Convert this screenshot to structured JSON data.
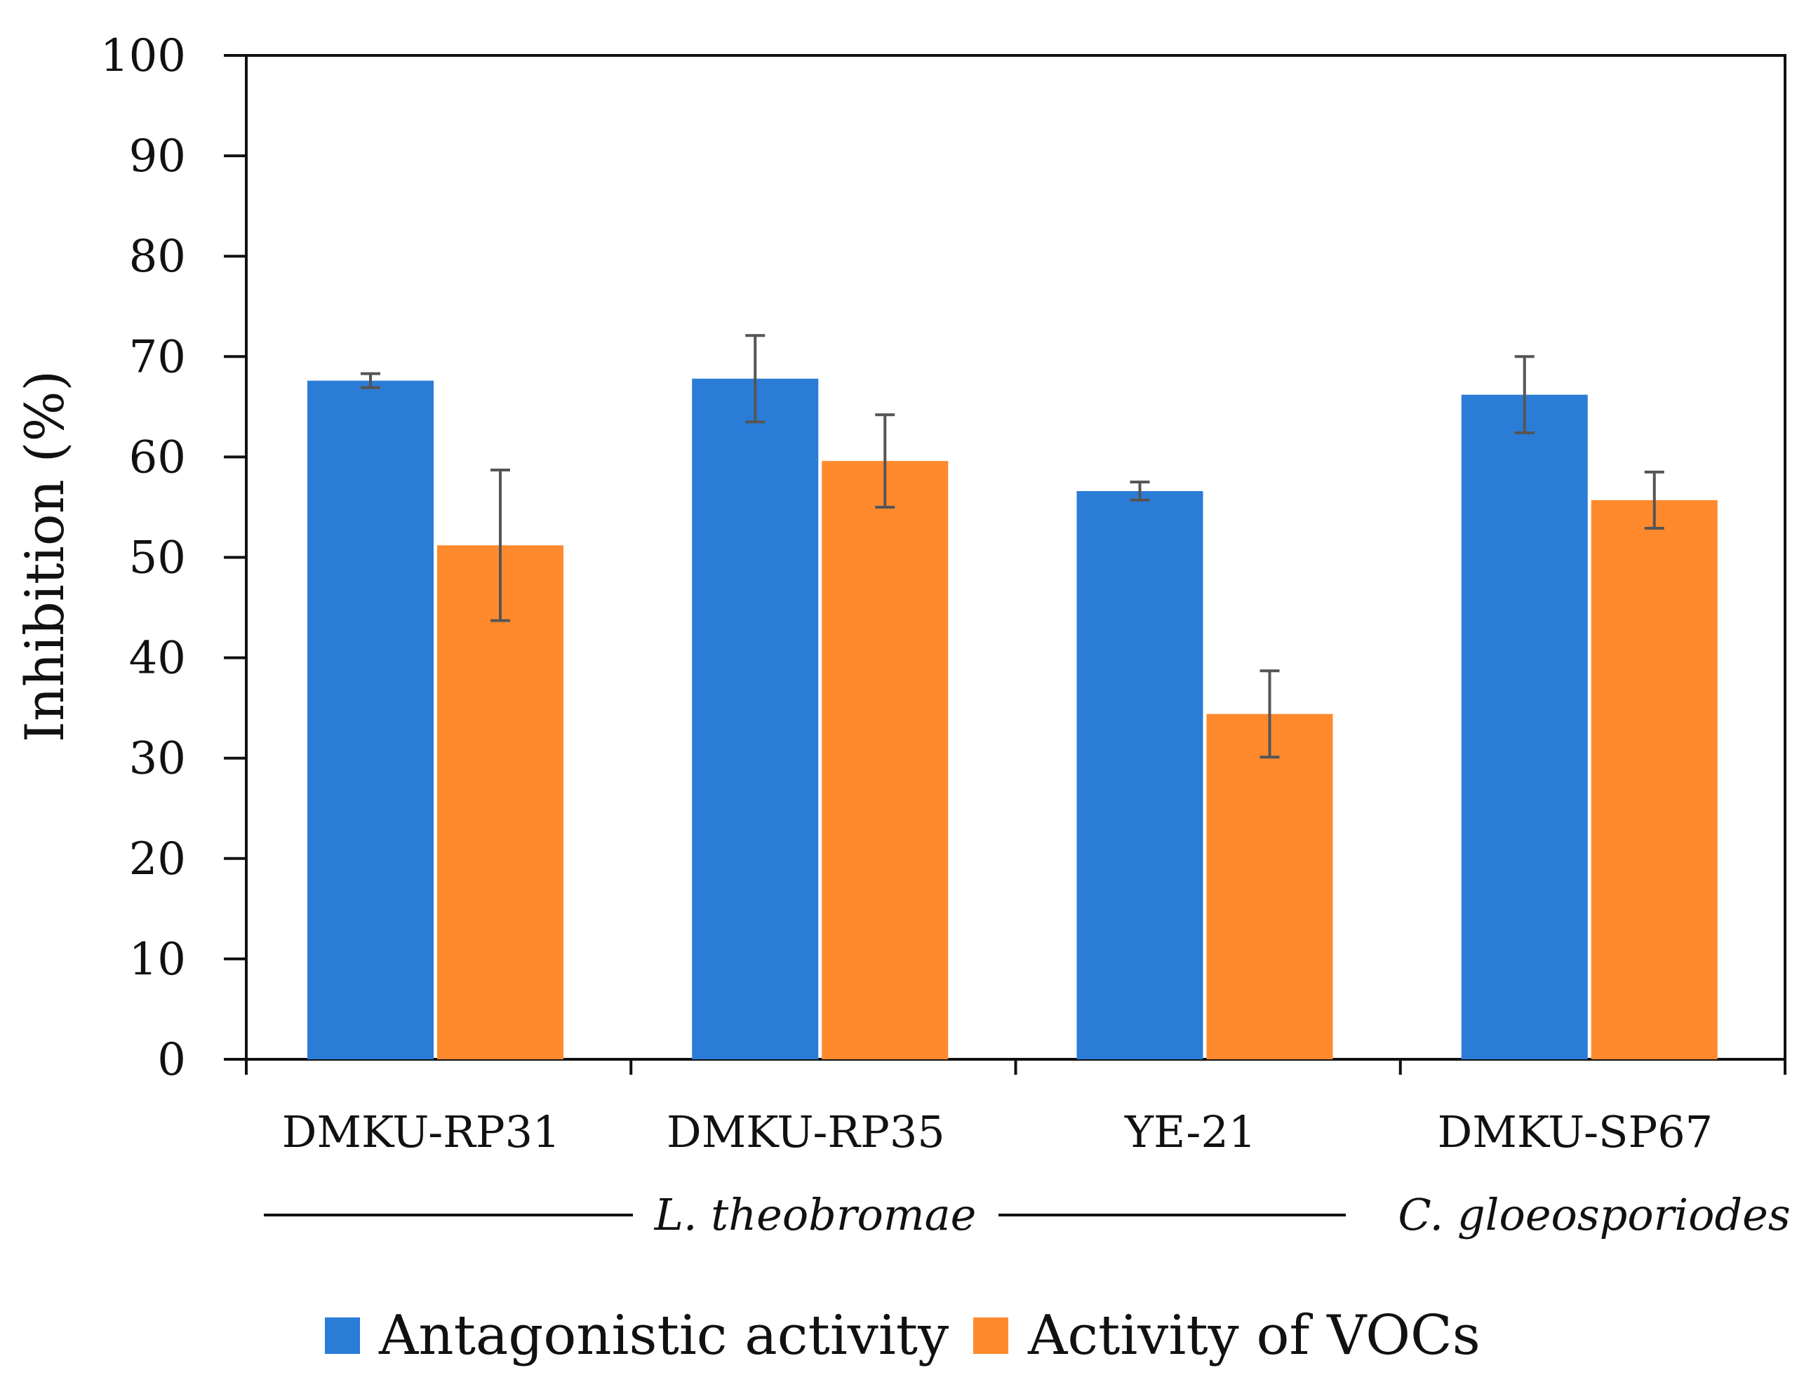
{
  "chart_data": {
    "type": "bar",
    "title": "",
    "xlabel": "",
    "ylabel": "Inhibition (%)",
    "ylim": [
      0,
      100
    ],
    "yticks": [
      0,
      10,
      20,
      30,
      40,
      50,
      60,
      70,
      80,
      90,
      100
    ],
    "categories": [
      "DMKU-RP31",
      "DMKU-RP35",
      "YE-21",
      "DMKU-SP67"
    ],
    "category_groups": [
      {
        "label": "L. theobromae",
        "categories": [
          "DMKU-RP31",
          "DMKU-RP35",
          "YE-21"
        ]
      },
      {
        "label": "C. gloeosporiodes",
        "categories": [
          "DMKU-SP67"
        ]
      }
    ],
    "series": [
      {
        "name": "Antagonistic activity",
        "color": "#2B7CD7",
        "values": [
          67.6,
          67.8,
          56.6,
          66.2
        ],
        "errors": [
          0.7,
          4.3,
          0.9,
          3.8
        ]
      },
      {
        "name": "Activity of VOCs",
        "color": "#FF8A2E",
        "values": [
          51.2,
          59.6,
          34.4,
          55.7
        ],
        "errors": [
          7.5,
          4.6,
          4.3,
          2.8
        ]
      }
    ],
    "legend_position": "bottom",
    "grid": false
  }
}
